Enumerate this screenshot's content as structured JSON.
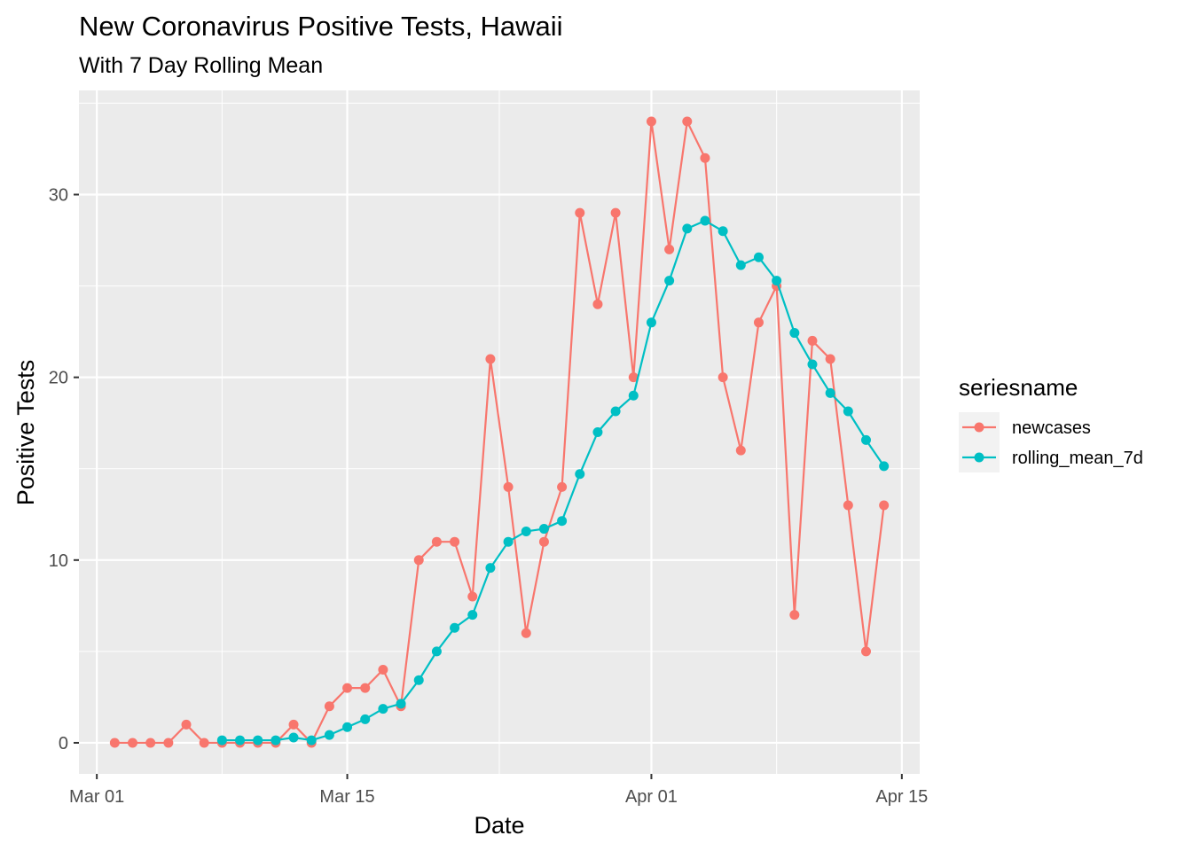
{
  "chart_data": {
    "type": "line",
    "title": "New Coronavirus Positive Tests, Hawaii",
    "subtitle": "With 7 Day Rolling Mean",
    "xlabel": "Date",
    "ylabel": "Positive Tests",
    "x_ticks": [
      {
        "label": "Mar 01",
        "date": "2020-03-01"
      },
      {
        "label": "Mar 15",
        "date": "2020-03-15"
      },
      {
        "label": "Apr 01",
        "date": "2020-04-01"
      },
      {
        "label": "Apr 15",
        "date": "2020-04-15"
      }
    ],
    "y_ticks": [
      0,
      10,
      20,
      30
    ],
    "xlim": [
      "2020-02-29",
      "2020-04-16"
    ],
    "ylim": [
      -1.7,
      35.7
    ],
    "grid": true,
    "legend": {
      "title": "seriesname",
      "position": "right"
    },
    "series": [
      {
        "name": "newcases",
        "color": "#F8766D",
        "points": [
          [
            "2020-03-02",
            0
          ],
          [
            "2020-03-03",
            0
          ],
          [
            "2020-03-04",
            0
          ],
          [
            "2020-03-05",
            0
          ],
          [
            "2020-03-06",
            1
          ],
          [
            "2020-03-07",
            0
          ],
          [
            "2020-03-08",
            0
          ],
          [
            "2020-03-09",
            0
          ],
          [
            "2020-03-10",
            0
          ],
          [
            "2020-03-11",
            0
          ],
          [
            "2020-03-12",
            1
          ],
          [
            "2020-03-13",
            0
          ],
          [
            "2020-03-14",
            2
          ],
          [
            "2020-03-15",
            3
          ],
          [
            "2020-03-16",
            3
          ],
          [
            "2020-03-17",
            4
          ],
          [
            "2020-03-18",
            2
          ],
          [
            "2020-03-19",
            10
          ],
          [
            "2020-03-20",
            11
          ],
          [
            "2020-03-21",
            11
          ],
          [
            "2020-03-22",
            8
          ],
          [
            "2020-03-23",
            21
          ],
          [
            "2020-03-24",
            14
          ],
          [
            "2020-03-25",
            6
          ],
          [
            "2020-03-26",
            11
          ],
          [
            "2020-03-27",
            14
          ],
          [
            "2020-03-28",
            29
          ],
          [
            "2020-03-29",
            24
          ],
          [
            "2020-03-30",
            29
          ],
          [
            "2020-03-31",
            20
          ],
          [
            "2020-04-01",
            34
          ],
          [
            "2020-04-02",
            27
          ],
          [
            "2020-04-03",
            34
          ],
          [
            "2020-04-04",
            32
          ],
          [
            "2020-04-05",
            20
          ],
          [
            "2020-04-06",
            16
          ],
          [
            "2020-04-07",
            23
          ],
          [
            "2020-04-08",
            25
          ],
          [
            "2020-04-09",
            7
          ],
          [
            "2020-04-10",
            22
          ],
          [
            "2020-04-11",
            21
          ],
          [
            "2020-04-12",
            13
          ],
          [
            "2020-04-13",
            5
          ],
          [
            "2020-04-14",
            13
          ]
        ]
      },
      {
        "name": "rolling_mean_7d",
        "color": "#00BFC4",
        "points": [
          [
            "2020-03-08",
            0.14
          ],
          [
            "2020-03-09",
            0.14
          ],
          [
            "2020-03-10",
            0.14
          ],
          [
            "2020-03-11",
            0.14
          ],
          [
            "2020-03-12",
            0.29
          ],
          [
            "2020-03-13",
            0.14
          ],
          [
            "2020-03-14",
            0.43
          ],
          [
            "2020-03-15",
            0.86
          ],
          [
            "2020-03-16",
            1.29
          ],
          [
            "2020-03-17",
            1.86
          ],
          [
            "2020-03-18",
            2.14
          ],
          [
            "2020-03-19",
            3.43
          ],
          [
            "2020-03-20",
            5.0
          ],
          [
            "2020-03-21",
            6.29
          ],
          [
            "2020-03-22",
            7.0
          ],
          [
            "2020-03-23",
            9.57
          ],
          [
            "2020-03-24",
            11.0
          ],
          [
            "2020-03-25",
            11.57
          ],
          [
            "2020-03-26",
            11.71
          ],
          [
            "2020-03-27",
            12.14
          ],
          [
            "2020-03-28",
            14.71
          ],
          [
            "2020-03-29",
            17.0
          ],
          [
            "2020-03-30",
            18.14
          ],
          [
            "2020-03-31",
            19.0
          ],
          [
            "2020-04-01",
            23.0
          ],
          [
            "2020-04-02",
            25.29
          ],
          [
            "2020-04-03",
            28.14
          ],
          [
            "2020-04-04",
            28.57
          ],
          [
            "2020-04-05",
            28.0
          ],
          [
            "2020-04-06",
            26.14
          ],
          [
            "2020-04-07",
            26.57
          ],
          [
            "2020-04-08",
            25.29
          ],
          [
            "2020-04-09",
            22.43
          ],
          [
            "2020-04-10",
            20.71
          ],
          [
            "2020-04-11",
            19.14
          ],
          [
            "2020-04-12",
            18.14
          ],
          [
            "2020-04-13",
            16.57
          ],
          [
            "2020-04-14",
            15.14
          ]
        ]
      }
    ]
  }
}
